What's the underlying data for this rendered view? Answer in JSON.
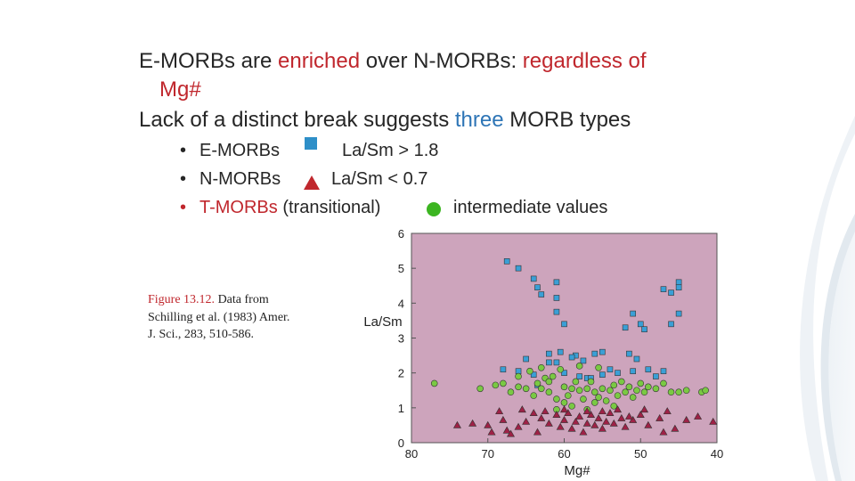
{
  "slide": {
    "line1_a": "E-MORBs are ",
    "line1_b": "enriched",
    "line1_c": " over N-MORBs: ",
    "line1_d": "regardless of",
    "line1_e": "Mg#",
    "line2_a": "Lack of a distinct break suggests ",
    "line2_b": "three",
    "line2_c": " MORB types",
    "bullets": [
      {
        "marker": "•",
        "name": "E-MORBs",
        "criterion": "La/Sm > 1.8",
        "color": "#2e8fc8",
        "icon": "blue-square-icon"
      },
      {
        "marker": "•",
        "name": "N-MORBs",
        "criterion": "La/Sm < 0.7",
        "color": "#c0272d",
        "icon": "red-triangle-icon"
      },
      {
        "marker": "•",
        "name": "T-MORBs",
        "extra": " (transitional)",
        "criterion": "intermediate values",
        "color": "#3cb521",
        "icon": "green-circle-icon"
      }
    ]
  },
  "caption": {
    "fig_label": "Figure 13.12.",
    "text_1": " Data from",
    "text_2": "Schilling et al. (1983) Amer.",
    "text_3": "J. Sci., 283, 510-586."
  },
  "chart_data": {
    "type": "scatter",
    "xlabel": "Mg#",
    "ylabel": "La/Sm",
    "xlim": [
      80,
      40
    ],
    "ylim": [
      0,
      6
    ],
    "x_ticks": [
      "80",
      "70",
      "60",
      "50",
      "40"
    ],
    "y_ticks": [
      "0",
      "1",
      "2",
      "3",
      "4",
      "5",
      "6"
    ],
    "background": "#cda4bc",
    "series": [
      {
        "marker": "square",
        "color": "#3a9fd6",
        "points": [
          [
            67.5,
            5.2
          ],
          [
            66,
            5.0
          ],
          [
            64,
            4.7
          ],
          [
            63.5,
            4.45
          ],
          [
            63,
            4.25
          ],
          [
            61,
            4.6
          ],
          [
            61,
            4.15
          ],
          [
            61,
            3.75
          ],
          [
            60,
            3.4
          ],
          [
            62,
            2.55
          ],
          [
            61,
            2.3
          ],
          [
            58.5,
            2.5
          ],
          [
            56,
            2.55
          ],
          [
            55,
            2.6
          ],
          [
            52,
            3.3
          ],
          [
            51,
            3.7
          ],
          [
            51.5,
            2.55
          ],
          [
            50,
            3.4
          ],
          [
            49.5,
            3.25
          ],
          [
            47,
            4.4
          ],
          [
            46,
            4.3
          ],
          [
            45,
            4.6
          ],
          [
            45,
            4.45
          ],
          [
            45,
            3.7
          ],
          [
            46,
            3.4
          ],
          [
            68,
            2.1
          ],
          [
            66,
            2.05
          ],
          [
            65,
            2.4
          ],
          [
            64,
            1.95
          ],
          [
            62,
            2.3
          ],
          [
            60.5,
            2.6
          ],
          [
            60,
            2.0
          ],
          [
            58,
            1.9
          ],
          [
            57,
            1.85
          ],
          [
            55,
            1.95
          ],
          [
            54,
            2.1
          ],
          [
            53,
            2.0
          ],
          [
            51,
            2.05
          ],
          [
            50.5,
            2.4
          ],
          [
            49,
            2.1
          ],
          [
            48,
            1.9
          ],
          [
            47,
            2.05
          ],
          [
            57.5,
            2.35
          ],
          [
            56.5,
            1.85
          ],
          [
            63.5,
            1.65
          ],
          [
            59,
            2.45
          ]
        ]
      },
      {
        "marker": "circle",
        "color": "#7ac943",
        "points": [
          [
            77,
            1.7
          ],
          [
            71,
            1.55
          ],
          [
            69,
            1.65
          ],
          [
            68,
            1.7
          ],
          [
            67,
            1.45
          ],
          [
            66,
            1.6
          ],
          [
            65,
            1.55
          ],
          [
            64,
            1.35
          ],
          [
            63.5,
            1.7
          ],
          [
            63,
            1.55
          ],
          [
            62,
            1.45
          ],
          [
            61.5,
            1.9
          ],
          [
            61,
            1.25
          ],
          [
            60,
            1.6
          ],
          [
            59.5,
            1.35
          ],
          [
            59,
            1.55
          ],
          [
            58.5,
            1.75
          ],
          [
            58,
            1.5
          ],
          [
            57.5,
            1.25
          ],
          [
            57,
            1.55
          ],
          [
            56.5,
            1.75
          ],
          [
            56,
            1.45
          ],
          [
            55.5,
            1.3
          ],
          [
            55,
            1.55
          ],
          [
            54.5,
            1.2
          ],
          [
            54,
            1.5
          ],
          [
            53.5,
            1.65
          ],
          [
            53,
            1.35
          ],
          [
            52.5,
            1.75
          ],
          [
            52,
            1.45
          ],
          [
            51.5,
            1.6
          ],
          [
            51,
            1.3
          ],
          [
            50.5,
            1.5
          ],
          [
            50,
            1.7
          ],
          [
            49.5,
            1.45
          ],
          [
            49,
            1.6
          ],
          [
            48,
            1.55
          ],
          [
            47,
            1.7
          ],
          [
            46,
            1.45
          ],
          [
            44,
            1.5
          ],
          [
            42,
            1.45
          ],
          [
            41.5,
            1.5
          ],
          [
            60.5,
            2.1
          ],
          [
            58,
            2.2
          ],
          [
            55.5,
            2.15
          ],
          [
            62.5,
            1.85
          ],
          [
            63,
            2.15
          ],
          [
            64.5,
            2.05
          ],
          [
            66,
            1.9
          ],
          [
            57,
            0.95
          ],
          [
            56,
            1.15
          ],
          [
            53.5,
            1.05
          ],
          [
            59,
            1.05
          ],
          [
            61,
            0.95
          ],
          [
            60,
            1.15
          ],
          [
            62,
            1.75
          ],
          [
            45,
            1.45
          ]
        ]
      },
      {
        "marker": "triangle",
        "color": "#9e2146",
        "points": [
          [
            74,
            0.5
          ],
          [
            72,
            0.55
          ],
          [
            70,
            0.5
          ],
          [
            69.5,
            0.3
          ],
          [
            68,
            0.65
          ],
          [
            67.5,
            0.35
          ],
          [
            67,
            0.25
          ],
          [
            66,
            0.45
          ],
          [
            65,
            0.6
          ],
          [
            64,
            0.85
          ],
          [
            63.5,
            0.3
          ],
          [
            62,
            0.55
          ],
          [
            61,
            0.8
          ],
          [
            60.5,
            0.45
          ],
          [
            60,
            0.65
          ],
          [
            59.5,
            0.85
          ],
          [
            59,
            0.4
          ],
          [
            58.5,
            0.6
          ],
          [
            58,
            0.75
          ],
          [
            57.5,
            0.3
          ],
          [
            57,
            0.55
          ],
          [
            56.5,
            0.8
          ],
          [
            56,
            0.5
          ],
          [
            55.5,
            0.7
          ],
          [
            55,
            0.4
          ],
          [
            54.5,
            0.6
          ],
          [
            54,
            0.85
          ],
          [
            53.5,
            0.55
          ],
          [
            52.5,
            0.7
          ],
          [
            52,
            0.45
          ],
          [
            51,
            0.65
          ],
          [
            50,
            0.8
          ],
          [
            49,
            0.5
          ],
          [
            47.5,
            0.7
          ],
          [
            46.5,
            0.9
          ],
          [
            45.5,
            0.4
          ],
          [
            44,
            0.65
          ],
          [
            42.5,
            0.75
          ],
          [
            40.5,
            0.6
          ],
          [
            68.5,
            0.9
          ],
          [
            65.5,
            0.95
          ],
          [
            62.5,
            0.9
          ],
          [
            60,
            0.95
          ],
          [
            57,
            0.9
          ],
          [
            55,
            0.9
          ],
          [
            53,
            0.95
          ],
          [
            51.5,
            0.75
          ],
          [
            49.5,
            0.95
          ],
          [
            47,
            0.3
          ],
          [
            63,
            0.7
          ]
        ]
      }
    ]
  }
}
